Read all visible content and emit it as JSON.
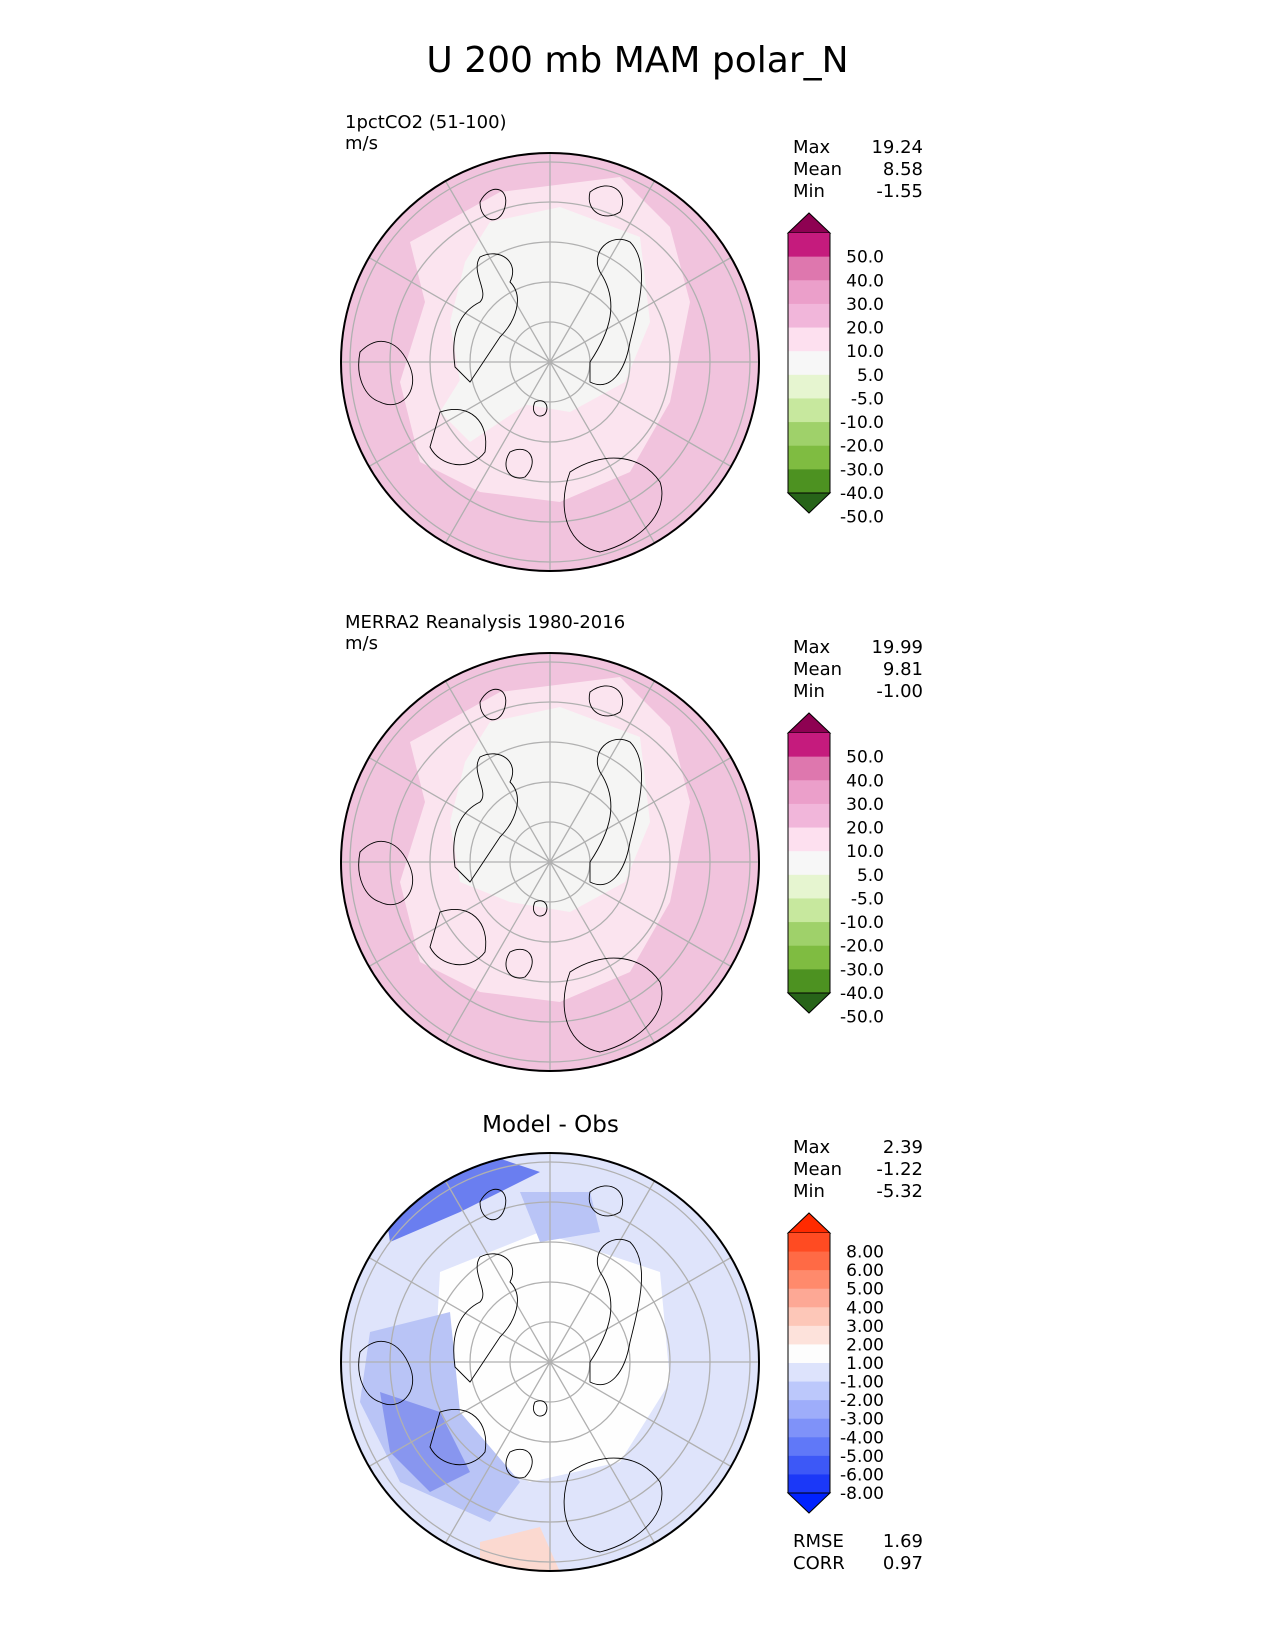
{
  "title": "U 200 mb MAM polar_N",
  "panels": [
    {
      "title": "1pctCO2 (51-100)",
      "units": "m/s",
      "stats": {
        "max_label": "Max",
        "max": "19.24",
        "mean_label": "Mean",
        "mean": "8.58",
        "min_label": "Min",
        "min": "-1.55"
      },
      "colorbar": {
        "labels": [
          "50.0",
          "40.0",
          "30.0",
          "20.0",
          "10.0",
          "5.0",
          "-5.0",
          "-10.0",
          "-20.0",
          "-30.0",
          "-40.0",
          "-50.0"
        ],
        "colors": [
          "#8e0152",
          "#c51b7d",
          "#de77ae",
          "#eb9fca",
          "#f1b6da",
          "#fde0ef",
          "#f7f7f7",
          "#e6f5d0",
          "#c7e89e",
          "#9fd16a",
          "#7fbc41",
          "#4d9221",
          "#276419"
        ]
      }
    },
    {
      "title": "MERRA2 Reanalysis 1980-2016",
      "units": "m/s",
      "stats": {
        "max_label": "Max",
        "max": "19.99",
        "mean_label": "Mean",
        "mean": "9.81",
        "min_label": "Min",
        "min": "-1.00"
      },
      "colorbar": {
        "labels": [
          "50.0",
          "40.0",
          "30.0",
          "20.0",
          "10.0",
          "5.0",
          "-5.0",
          "-10.0",
          "-20.0",
          "-30.0",
          "-40.0",
          "-50.0"
        ],
        "colors": [
          "#8e0152",
          "#c51b7d",
          "#de77ae",
          "#eb9fca",
          "#f1b6da",
          "#fde0ef",
          "#f7f7f7",
          "#e6f5d0",
          "#c7e89e",
          "#9fd16a",
          "#7fbc41",
          "#4d9221",
          "#276419"
        ]
      }
    },
    {
      "title": "Model - Obs",
      "stats": {
        "max_label": "Max",
        "max": "2.39",
        "mean_label": "Mean",
        "mean": "-1.22",
        "min_label": "Min",
        "min": "-5.32"
      },
      "colorbar": {
        "labels": [
          "8.00",
          "6.00",
          "5.00",
          "4.00",
          "3.00",
          "2.00",
          "1.00",
          "-1.00",
          "-2.00",
          "-3.00",
          "-4.00",
          "-5.00",
          "-6.00",
          "-8.00"
        ],
        "colors": [
          "#ff2a00",
          "#ff4b22",
          "#ff6a45",
          "#ff8a6c",
          "#fda895",
          "#fdc7b8",
          "#fde2db",
          "#fdfdfd",
          "#dde3fc",
          "#bcc8fb",
          "#9eadfa",
          "#7f92f9",
          "#6078f8",
          "#3d58f7",
          "#1b38f8",
          "#0022ff"
        ]
      },
      "footer": {
        "rmse_label": "RMSE",
        "rmse": "1.69",
        "corr_label": "CORR",
        "corr": "0.97"
      }
    }
  ]
}
